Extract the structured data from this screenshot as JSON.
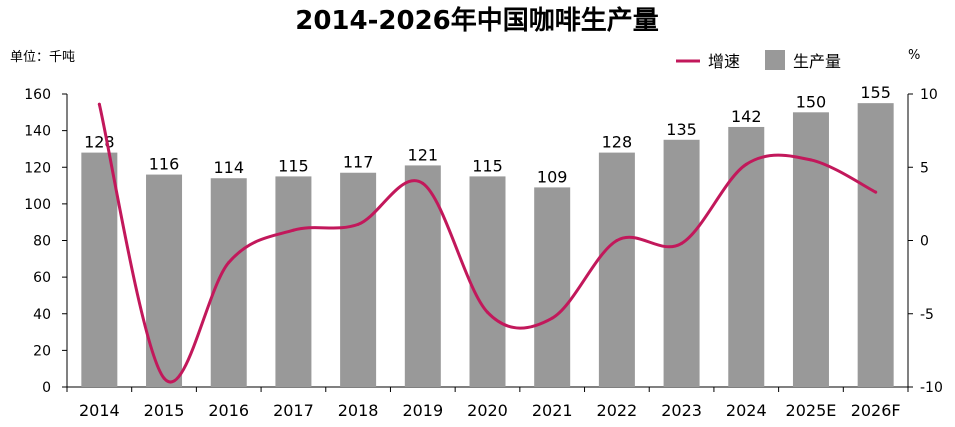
{
  "chart_data": {
    "type": "bar",
    "title": "2014-2026年中国咖啡生产量",
    "left_unit": "单位：千吨",
    "right_unit": "%",
    "categories": [
      "2014",
      "2015",
      "2016",
      "2017",
      "2018",
      "2019",
      "2020",
      "2021",
      "2022",
      "2023",
      "2024",
      "2025E",
      "2026F"
    ],
    "series": [
      {
        "name": "生产量",
        "type": "bar",
        "axis": "left",
        "color": "#999999",
        "values": [
          128,
          116,
          114,
          115,
          117,
          121,
          115,
          109,
          128,
          135,
          142,
          150,
          155
        ]
      },
      {
        "name": "增速",
        "type": "line",
        "axis": "right",
        "color": "#c2185b",
        "values": [
          9.3,
          -9.4,
          -1.5,
          0.7,
          1.1,
          3.9,
          -4.9,
          -5.3,
          0,
          -0.2,
          5.2,
          5.5,
          3.3
        ]
      }
    ],
    "ylim_left": [
      0,
      160
    ],
    "yticks_left": [
      0,
      20,
      40,
      60,
      80,
      100,
      120,
      140,
      160
    ],
    "ylim_right": [
      -10,
      10
    ],
    "yticks_right": [
      -10,
      -5,
      0,
      5,
      10
    ],
    "legend_position": "top-right",
    "grid": false
  }
}
